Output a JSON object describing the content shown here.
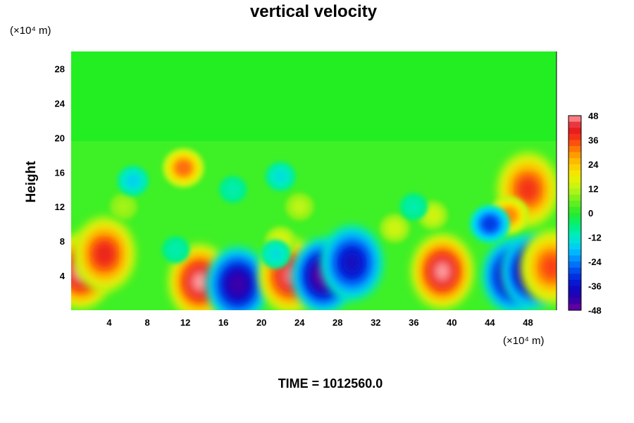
{
  "chart_data": {
    "type": "heatmap",
    "title": "vertical velocity",
    "ylabel": "Height",
    "y_unit": "(×10⁴ m)",
    "x_unit": "(×10⁴ m)",
    "xlim": [
      0,
      51
    ],
    "ylim": [
      0,
      30
    ],
    "xticks": [
      4,
      8,
      12,
      16,
      20,
      24,
      28,
      32,
      36,
      40,
      44,
      48
    ],
    "yticks": [
      4,
      8,
      12,
      16,
      20,
      24,
      28
    ],
    "colorbar": {
      "range": [
        -48,
        48
      ],
      "ticks": [
        48,
        36,
        24,
        12,
        0,
        -12,
        -24,
        -36,
        -48
      ]
    },
    "footer": "TIME = 1012560.0",
    "features": [
      {
        "x": 1.0,
        "y": 4.5,
        "value": 48
      },
      {
        "x": 3.5,
        "y": 6.5,
        "value": 40
      },
      {
        "x": 13.5,
        "y": 3.3,
        "value": 48
      },
      {
        "x": 17.5,
        "y": 3.0,
        "value": -44
      },
      {
        "x": 23.0,
        "y": 4.0,
        "value": 46
      },
      {
        "x": 26.5,
        "y": 4.0,
        "value": -48
      },
      {
        "x": 29.5,
        "y": 5.5,
        "value": -38
      },
      {
        "x": 39.0,
        "y": 4.5,
        "value": 48
      },
      {
        "x": 46.5,
        "y": 4.0,
        "value": -46
      },
      {
        "x": 48.5,
        "y": 4.5,
        "value": -48
      },
      {
        "x": 50.5,
        "y": 5.0,
        "value": 36
      },
      {
        "x": 11.8,
        "y": 16.5,
        "value": 32
      },
      {
        "x": 48.0,
        "y": 14.0,
        "value": 38
      },
      {
        "x": 46.0,
        "y": 11.0,
        "value": 30
      },
      {
        "x": 44.0,
        "y": 10.0,
        "value": -30
      },
      {
        "x": 38.0,
        "y": 11.0,
        "value": 14
      },
      {
        "x": 34.0,
        "y": 9.5,
        "value": 14
      },
      {
        "x": 22.0,
        "y": 8.0,
        "value": 16
      },
      {
        "x": 21.5,
        "y": 6.5,
        "value": -14
      },
      {
        "x": 24.0,
        "y": 12.0,
        "value": 12
      },
      {
        "x": 5.5,
        "y": 12.0,
        "value": 10
      },
      {
        "x": 6.5,
        "y": 15.0,
        "value": -16
      },
      {
        "x": 17.0,
        "y": 14.0,
        "value": -10
      },
      {
        "x": 22.0,
        "y": 15.5,
        "value": -14
      },
      {
        "x": 36.0,
        "y": 12.0,
        "value": -10
      },
      {
        "x": 11.0,
        "y": 7.0,
        "value": -10
      }
    ]
  }
}
